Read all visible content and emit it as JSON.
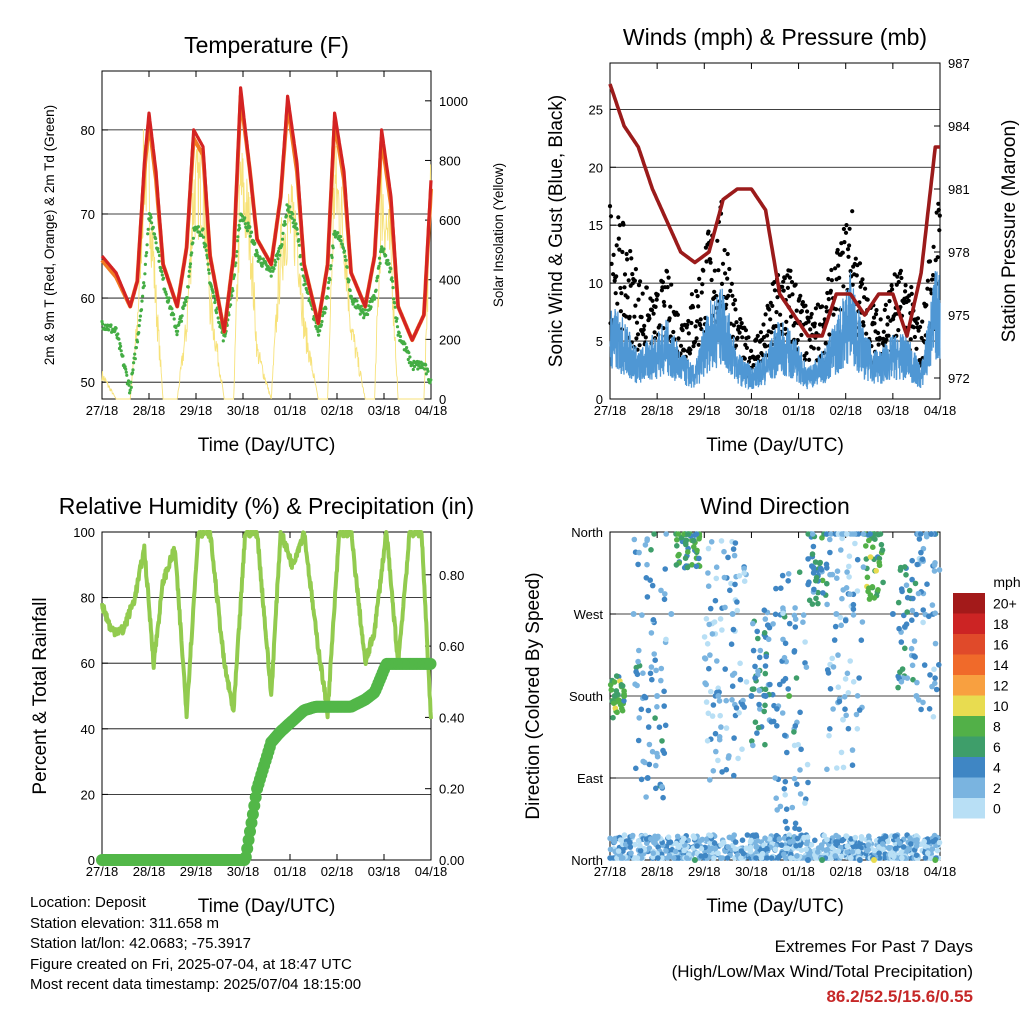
{
  "panels": [
    {
      "id": "temperature",
      "title": "Temperature (F)",
      "xlabel": "Time (Day/UTC)",
      "ylabel_left": "2m & 9m T (Red, Orange) & 2m Td (Green)",
      "ylabel_right": "Solar Insolation (Yellow)",
      "yticks_left": [
        "50",
        "60",
        "70",
        "80"
      ],
      "yticks_right": [
        "0",
        "200",
        "400",
        "600",
        "800",
        "1000"
      ]
    },
    {
      "id": "winds",
      "title": "Winds (mph) & Pressure (mb)",
      "xlabel": "Time (Day/UTC)",
      "ylabel_left": "Sonic Wind & Gust (Blue, Black)",
      "ylabel_right": "Station Pressure (Maroon)",
      "yticks_left": [
        "0",
        "5",
        "10",
        "15",
        "20",
        "25"
      ],
      "yticks_right": [
        "972",
        "975",
        "978",
        "981",
        "984",
        "987"
      ]
    },
    {
      "id": "humidity",
      "title": "Relative Humidity (%) & Precipitation (in)",
      "xlabel": "Time (Day/UTC)",
      "ylabel_left": "Percent & Total Rainfall",
      "ylabel_right": "",
      "yticks_left": [
        "0",
        "20",
        "40",
        "60",
        "80",
        "100"
      ],
      "yticks_right": [
        "0.00",
        "0.20",
        "0.40",
        "0.60",
        "0.80"
      ]
    },
    {
      "id": "direction",
      "title": "Wind Direction",
      "xlabel": "Time (Day/UTC)",
      "ylabel_left": "Direction (Colored By Speed)",
      "ylabel_right": "",
      "yticks_left": [
        "North",
        "East",
        "South",
        "West",
        "North"
      ],
      "yticks_right": []
    }
  ],
  "xticks": [
    "27/18",
    "28/18",
    "29/18",
    "30/18",
    "01/18",
    "02/18",
    "03/18",
    "04/18"
  ],
  "legend": {
    "title": "mph",
    "labels": [
      "20+",
      "18",
      "16",
      "14",
      "12",
      "10",
      "8",
      "6",
      "4",
      "2",
      "0"
    ],
    "colors": [
      "#a31a1a",
      "#cc2424",
      "#e04a2a",
      "#f06a2a",
      "#f8a040",
      "#e8dc50",
      "#52b048",
      "#3e9e6a",
      "#3f86c4",
      "#7ab4e0",
      "#b8dff5"
    ]
  },
  "colors": {
    "temp2m": "#d42323",
    "temp9m": "#f07a22",
    "dewpoint": "#44ad44",
    "solar": "#f7e27a",
    "wind": "#4f97d4",
    "gust": "#000000",
    "pressure": "#9b1b1b",
    "humidity": "#92cb4f",
    "precip": "#52b748"
  },
  "info": {
    "location": "Location: Deposit",
    "elevation": "Station elevation: 311.658 m",
    "latlon": "Station lat/lon: 42.0683; -75.3917",
    "created": "Figure created on Fri, 2025-07-04, at 18:47 UTC",
    "recent": "Most recent data timestamp: 2025/07/04 18:15:00"
  },
  "extremes": {
    "title": "Extremes For Past 7 Days",
    "subtitle": "(High/Low/Max Wind/Total Precipitation)",
    "values": "86.2/52.5/15.6/0.55"
  },
  "chart_data": [
    {
      "type": "line",
      "title": "Temperature (F)",
      "xlabel": "Time (Day/UTC)",
      "ylabel": "2m & 9m T (Red, Orange) & 2m Td (Green)",
      "ylabel_right": "Solar Insolation (Yellow)",
      "xlim_days": [
        0,
        7
      ],
      "ylim": [
        48,
        87
      ],
      "ylim_right": [
        0,
        1100
      ],
      "x_days": [
        0,
        0.3,
        0.6,
        0.75,
        0.9,
        1.0,
        1.15,
        1.3,
        1.6,
        1.8,
        1.95,
        2.15,
        2.3,
        2.6,
        2.8,
        2.95,
        3.15,
        3.3,
        3.6,
        3.8,
        3.95,
        4.15,
        4.3,
        4.6,
        4.8,
        4.95,
        5.15,
        5.3,
        5.6,
        5.8,
        5.95,
        6.15,
        6.3,
        6.6,
        6.85,
        7.0
      ],
      "series": [
        {
          "name": "2m T (Red)",
          "values": [
            65,
            63,
            59,
            62,
            76,
            82,
            75,
            64,
            59,
            66,
            80,
            78,
            65,
            56,
            65,
            85,
            75,
            67,
            64,
            72,
            84,
            76,
            64,
            57,
            64,
            82,
            75,
            63,
            59,
            65,
            80,
            72,
            59,
            55,
            58,
            74
          ]
        },
        {
          "name": "9m T (Orange)",
          "values": [
            64.5,
            62.5,
            59,
            62,
            75,
            81,
            74,
            64,
            59,
            66,
            79,
            77,
            65,
            56,
            65,
            84,
            75,
            67,
            64,
            72,
            83,
            75,
            64,
            57,
            64,
            81,
            74,
            63,
            59,
            65,
            79,
            71,
            59,
            55,
            58,
            73
          ]
        },
        {
          "name": "2m Td (Green)",
          "values": [
            57,
            56,
            49,
            55,
            62,
            70,
            67,
            62,
            56,
            60,
            68,
            68,
            62,
            55,
            62,
            70,
            68,
            65,
            63,
            66,
            71,
            68,
            62,
            56,
            60,
            68,
            66,
            60,
            58,
            60,
            66,
            63,
            56,
            52,
            52,
            50
          ]
        },
        {
          "name": "Solar Insolation (Yellow)",
          "values": [
            100,
            0,
            0,
            300,
            1000,
            900,
            400,
            0,
            0,
            300,
            850,
            900,
            400,
            0,
            0,
            900,
            700,
            200,
            0,
            600,
            750,
            700,
            300,
            0,
            0,
            900,
            700,
            300,
            0,
            0,
            850,
            600,
            0,
            0,
            0,
            900
          ]
        }
      ]
    },
    {
      "type": "scatter",
      "title": "Winds (mph) & Pressure (mb)",
      "xlabel": "Time (Day/UTC)",
      "ylabel": "Sonic Wind & Gust (Blue, Black)",
      "ylabel_right": "Station Pressure (Maroon)",
      "xlim_days": [
        0,
        7
      ],
      "ylim": [
        0,
        29
      ],
      "ylim_right": [
        971,
        987
      ],
      "x_days": [
        0,
        0.3,
        0.6,
        0.9,
        1.2,
        1.5,
        1.8,
        2.1,
        2.4,
        2.7,
        3.0,
        3.3,
        3.6,
        3.9,
        4.2,
        4.5,
        4.8,
        5.1,
        5.4,
        5.7,
        6.0,
        6.3,
        6.6,
        6.9
      ],
      "series": [
        {
          "name": "Sonic Wind (Blue)",
          "values": [
            6,
            5,
            3,
            4,
            5,
            3,
            2,
            6,
            7,
            3,
            2,
            3,
            5,
            4,
            2,
            3,
            5,
            8,
            4,
            3,
            4,
            4,
            2,
            8
          ]
        },
        {
          "name": "Gust (Black)",
          "values": [
            14,
            12,
            9,
            7,
            9,
            6,
            8,
            12,
            14,
            6,
            4,
            6,
            10,
            9,
            6,
            7,
            10,
            14,
            8,
            6,
            9,
            9,
            5,
            14
          ]
        },
        {
          "name": "Station Pressure (Maroon)",
          "values": [
            986,
            984,
            983,
            981,
            979.5,
            978,
            977.5,
            978,
            980.5,
            981,
            981,
            980,
            976,
            975,
            974,
            974,
            976,
            976,
            975,
            976,
            976,
            974,
            977,
            983
          ]
        }
      ]
    },
    {
      "type": "line",
      "title": "Relative Humidity (%) & Precipitation (in)",
      "xlabel": "Time (Day/UTC)",
      "ylabel": "Percent & Total Rainfall",
      "xlim_days": [
        0,
        7
      ],
      "ylim": [
        0,
        100
      ],
      "ylim_right": [
        0,
        0.92
      ],
      "x_days": [
        0,
        0.2,
        0.45,
        0.7,
        0.9,
        1.1,
        1.3,
        1.55,
        1.8,
        2.05,
        2.3,
        2.6,
        2.8,
        3.05,
        3.3,
        3.6,
        3.8,
        4.05,
        4.3,
        4.55,
        4.8,
        5.05,
        5.3,
        5.6,
        5.8,
        6.05,
        6.3,
        6.55,
        6.8,
        7.0
      ],
      "series": [
        {
          "name": "Relative Humidity (%)",
          "values": [
            78,
            70,
            70,
            80,
            95,
            60,
            85,
            95,
            45,
            100,
            100,
            60,
            45,
            100,
            100,
            50,
            100,
            90,
            100,
            70,
            45,
            100,
            100,
            60,
            70,
            100,
            60,
            100,
            100,
            43
          ]
        },
        {
          "name": "Total Precipitation (in)",
          "values": [
            0,
            0,
            0,
            0,
            0,
            0,
            0,
            0,
            0,
            0,
            0,
            0,
            0,
            0,
            0.2,
            0.33,
            0.36,
            0.39,
            0.42,
            0.43,
            0.43,
            0.43,
            0.43,
            0.45,
            0.47,
            0.55,
            0.55,
            0.55,
            0.55,
            0.55
          ]
        }
      ]
    },
    {
      "type": "scatter",
      "title": "Wind Direction",
      "xlabel": "Time (Day/UTC)",
      "ylabel": "Direction (Colored By Speed)",
      "xlim_days": [
        0,
        7
      ],
      "y_scale": "compass (North at bottom, East, South, West, North at top)",
      "legend": "right, speed in mph from 0 to 20+",
      "points": [
        {
          "x": 0.1,
          "dir": "South",
          "speed": 6
        },
        {
          "x": 0.3,
          "dir": "South",
          "speed": 8
        },
        {
          "x": 0.5,
          "dir": "West",
          "speed": 2
        },
        {
          "x": 0.8,
          "dir": "East",
          "speed": 4
        },
        {
          "x": 1.0,
          "dir": "South",
          "speed": 2
        },
        {
          "x": 1.3,
          "dir": "West",
          "speed": 2
        },
        {
          "x": 1.8,
          "dir": "North",
          "speed": 6
        },
        {
          "x": 2.3,
          "dir": "South",
          "speed": 2
        },
        {
          "x": 2.6,
          "dir": "West",
          "speed": 2
        },
        {
          "x": 3.0,
          "dir": "South",
          "speed": 4
        },
        {
          "x": 3.3,
          "dir": "South",
          "speed": 4
        },
        {
          "x": 3.8,
          "dir": "South",
          "speed": 8
        },
        {
          "x": 4.2,
          "dir": "North",
          "speed": 4
        },
        {
          "x": 4.5,
          "dir": "North",
          "speed": 6
        },
        {
          "x": 4.8,
          "dir": "West",
          "speed": 2
        },
        {
          "x": 5.3,
          "dir": "North",
          "speed": 4
        },
        {
          "x": 5.6,
          "dir": "North",
          "speed": 10
        },
        {
          "x": 6.0,
          "dir": "West",
          "speed": 4
        },
        {
          "x": 6.5,
          "dir": "South",
          "speed": 2
        },
        {
          "x": 6.9,
          "dir": "North",
          "speed": 8
        }
      ]
    }
  ]
}
